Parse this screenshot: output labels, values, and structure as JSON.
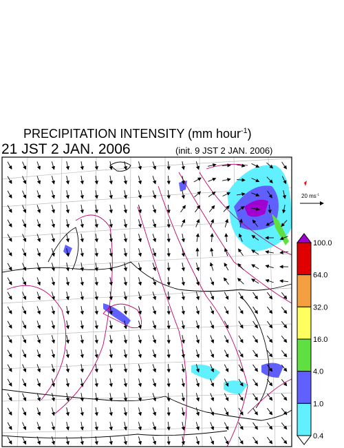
{
  "header": {
    "title": "PRECIPITATION INTENSITY (mm hour",
    "title_exponent": "-1",
    "title_close": ")",
    "valid_time": "21 JST 2 JAN. 2006",
    "init_time": "(init. 9 JST 2 JAN. 2006)"
  },
  "vector_scale": {
    "label": "20 ms",
    "exponent": "-1"
  },
  "colorbar": {
    "levels": [
      "100.0",
      "64.0",
      "32.0",
      "16.0",
      "4.0",
      "1.0",
      "0.4"
    ],
    "over_color": "#a000d0",
    "under_color": "#ffffff",
    "colors": [
      "#e00000",
      "#f4a040",
      "#ffff60",
      "#60e040",
      "#6060ff",
      "#60f0ff"
    ]
  }
}
